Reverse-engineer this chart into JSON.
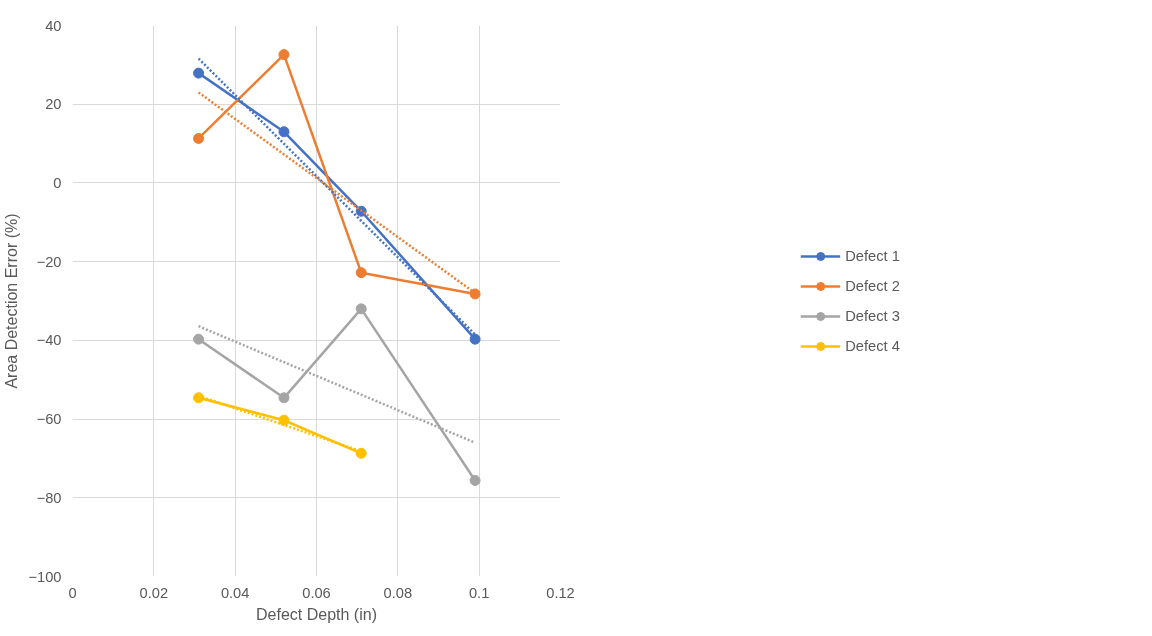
{
  "chart_data": {
    "type": "line",
    "xlabel": "Defect Depth (in)",
    "ylabel": "Area Detection Error (%)",
    "x": [
      0.031,
      0.052,
      0.071,
      0.099
    ],
    "series": [
      {
        "name": "Defect 1",
        "color": "#4472c4",
        "values": [
          27.9,
          13,
          -7.2,
          -39.7
        ]
      },
      {
        "name": "Defect 2",
        "color": "#ed7d31",
        "values": [
          11.3,
          32.6,
          -22.8,
          -28.2
        ]
      },
      {
        "name": "Defect 3",
        "color": "#a5a5a5",
        "values": [
          -39.7,
          -54.6,
          -32,
          -75.6
        ]
      },
      {
        "name": "Defect 4",
        "color": "#ffc000",
        "values": [
          -54.6,
          -60.3,
          -68.7,
          null
        ]
      },
      {
        "color": "#4472c4",
        "x": [
          0.031,
          0.099
        ],
        "values": [
          31.6,
          -38.5
        ],
        "marker": "none",
        "line_style": "dotted"
      },
      {
        "color": "#ed7d31",
        "x": [
          0.031,
          0.099
        ],
        "values": [
          23,
          -28
        ],
        "marker": "none",
        "line_style": "dotted"
      },
      {
        "color": "#a5a5a5",
        "x": [
          0.031,
          0.099
        ],
        "values": [
          -36.4,
          -66
        ],
        "marker": "none",
        "line_style": "dotted"
      },
      {
        "color": "#ffc000",
        "x": [
          0.031,
          0.071
        ],
        "values": [
          -54.1,
          -68.2
        ],
        "marker": "none",
        "line_style": "dotted"
      }
    ],
    "xlim": [
      0,
      0.12
    ],
    "xticks": [
      0,
      0.02,
      0.04,
      0.06,
      0.08,
      0.1,
      0.12
    ],
    "ylim": [
      -100,
      40
    ],
    "yticks": [
      -100,
      -80,
      -60,
      -40,
      -20,
      0,
      20,
      40
    ],
    "grid": true,
    "legend": "right",
    "marker": "circle",
    "line_style": "solid"
  }
}
